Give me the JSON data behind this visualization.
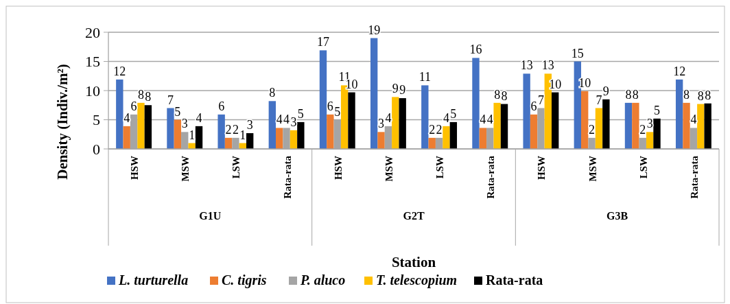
{
  "chart_data": {
    "type": "bar",
    "xlabel": "Station",
    "ylabel": "Density (Indiv./m²)",
    "categories": [
      "HSW",
      "MSW",
      "LSW",
      "Rata-rata",
      "HSW",
      "MSW",
      "LSW",
      "Rata-rata",
      "HSW",
      "MSW",
      "LSW",
      "Rata-rata"
    ],
    "annotations": [
      "G1U",
      "G2T",
      "G3B"
    ],
    "series": [
      {
        "name": "L. turturella",
        "color": "#4472c4",
        "values": [
          11.9,
          7,
          5.9,
          8.2,
          16.9,
          19,
          10.9,
          15.6,
          12.9,
          15,
          7.9,
          11.9
        ],
        "value_labels": [
          "12",
          "7",
          "6",
          "8",
          "17",
          "19",
          "11",
          "16",
          "13",
          "15",
          "8",
          "12"
        ]
      },
      {
        "name": "C. tigris",
        "color": "#ed7d31",
        "values": [
          3.9,
          5,
          1.9,
          3.6,
          5.9,
          2.9,
          1.9,
          3.6,
          5.9,
          9.9,
          7.9,
          7.9
        ],
        "value_labels": [
          "4",
          "5",
          "2",
          "4",
          "6",
          "3",
          "2",
          "4",
          "6",
          "10",
          "8",
          "8"
        ]
      },
      {
        "name": "P. aluco",
        "color": "#a5a5a5",
        "values": [
          5.9,
          2.9,
          1.9,
          3.6,
          5,
          3.9,
          1.9,
          3.6,
          7,
          1.9,
          1.9,
          3.6
        ],
        "value_labels": [
          "6",
          "3",
          "2",
          "4",
          "5",
          "4",
          "2",
          "4",
          "7",
          "2",
          "2",
          "4"
        ]
      },
      {
        "name": "T. telescopium",
        "color": "#ffc000",
        "values": [
          7.9,
          1,
          1,
          3.2,
          10.9,
          8.9,
          3.9,
          7.9,
          12.9,
          7,
          2.9,
          7.7
        ],
        "value_labels": [
          "8",
          "1",
          "1",
          "3",
          "11",
          "9",
          "4",
          "8",
          "13",
          "7",
          "3",
          "8"
        ]
      },
      {
        "name": "Rata-rata",
        "color": "#000000",
        "values": [
          7.5,
          3.9,
          2.7,
          4.6,
          9.7,
          8.7,
          4.6,
          7.7,
          9.7,
          8.5,
          5.2,
          7.8
        ],
        "value_labels": [
          "8",
          "4",
          "3",
          "5",
          "10",
          "9",
          "5",
          "8",
          "10",
          "9",
          "5",
          "8"
        ]
      }
    ],
    "ylim": [
      0,
      20
    ],
    "yticks": [
      0,
      5,
      10,
      15,
      20
    ],
    "grid": "y",
    "legend": "bottom"
  }
}
